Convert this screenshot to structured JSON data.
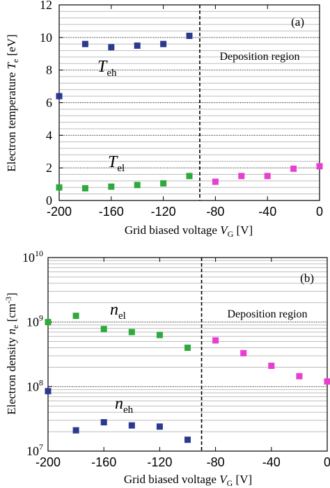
{
  "chart_data": [
    {
      "type": "scatter",
      "panel_label": "(a)",
      "region_label": "Deposition region",
      "xlabel": "Grid biased voltage V_G [V]",
      "ylabel": "Electron temperature T_e [eV]",
      "xlim": [
        -200,
        0
      ],
      "ylim": [
        0,
        12
      ],
      "x_ticks": [
        "-200",
        "-160",
        "-120",
        "-80",
        "-40",
        "0"
      ],
      "y_ticks": [
        "0",
        "2",
        "4",
        "6",
        "8",
        "10",
        "12"
      ],
      "dashed_line_x": -92,
      "series": [
        {
          "label": "T_eh",
          "color": "#2b3a8f",
          "x": [
            -200,
            -180,
            -160,
            -140,
            -120,
            -100
          ],
          "y": [
            6.4,
            9.6,
            9.4,
            9.5,
            9.6,
            10.1
          ]
        },
        {
          "label": "T_el",
          "color": "#2eaa3c",
          "x": [
            -200,
            -180,
            -160,
            -140,
            -120,
            -100
          ],
          "y": [
            0.8,
            0.75,
            0.85,
            0.95,
            1.05,
            1.5
          ]
        },
        {
          "label": "",
          "color": "#e83fcf",
          "x": [
            -80,
            -60,
            -40,
            -20,
            0
          ],
          "y": [
            1.15,
            1.5,
            1.5,
            1.95,
            2.1
          ]
        }
      ]
    },
    {
      "type": "scatter",
      "panel_label": "(b)",
      "region_label": "Deposition region",
      "xlabel": "Grid biased voltage V_G [V]",
      "ylabel": "Electron density n_e [cm^-3]",
      "xlim": [
        -200,
        0
      ],
      "ylim": [
        10000000,
        10000000000
      ],
      "yscale": "log",
      "x_ticks": [
        "-200",
        "-160",
        "-120",
        "-80",
        "-40",
        "0"
      ],
      "y_ticks": [
        "10^7",
        "10^8",
        "10^9",
        "10^10"
      ],
      "dashed_line_x": -90,
      "series": [
        {
          "label": "n_el",
          "color": "#2eaa3c",
          "x": [
            -200,
            -180,
            -160,
            -140,
            -120,
            -100
          ],
          "y": [
            1000000000,
            1250000000,
            780000000,
            700000000,
            630000000,
            400000000
          ]
        },
        {
          "label": "n_eh",
          "color": "#2b3a8f",
          "x": [
            -200,
            -180,
            -160,
            -140,
            -120,
            -100
          ],
          "y": [
            85000000,
            21000000,
            28000000,
            25000000,
            24000000,
            15000000
          ]
        },
        {
          "label": "",
          "color": "#e83fcf",
          "x": [
            -80,
            -60,
            -40,
            -20,
            0
          ],
          "y": [
            520000000,
            330000000,
            210000000,
            145000000,
            120000000
          ]
        }
      ]
    }
  ]
}
